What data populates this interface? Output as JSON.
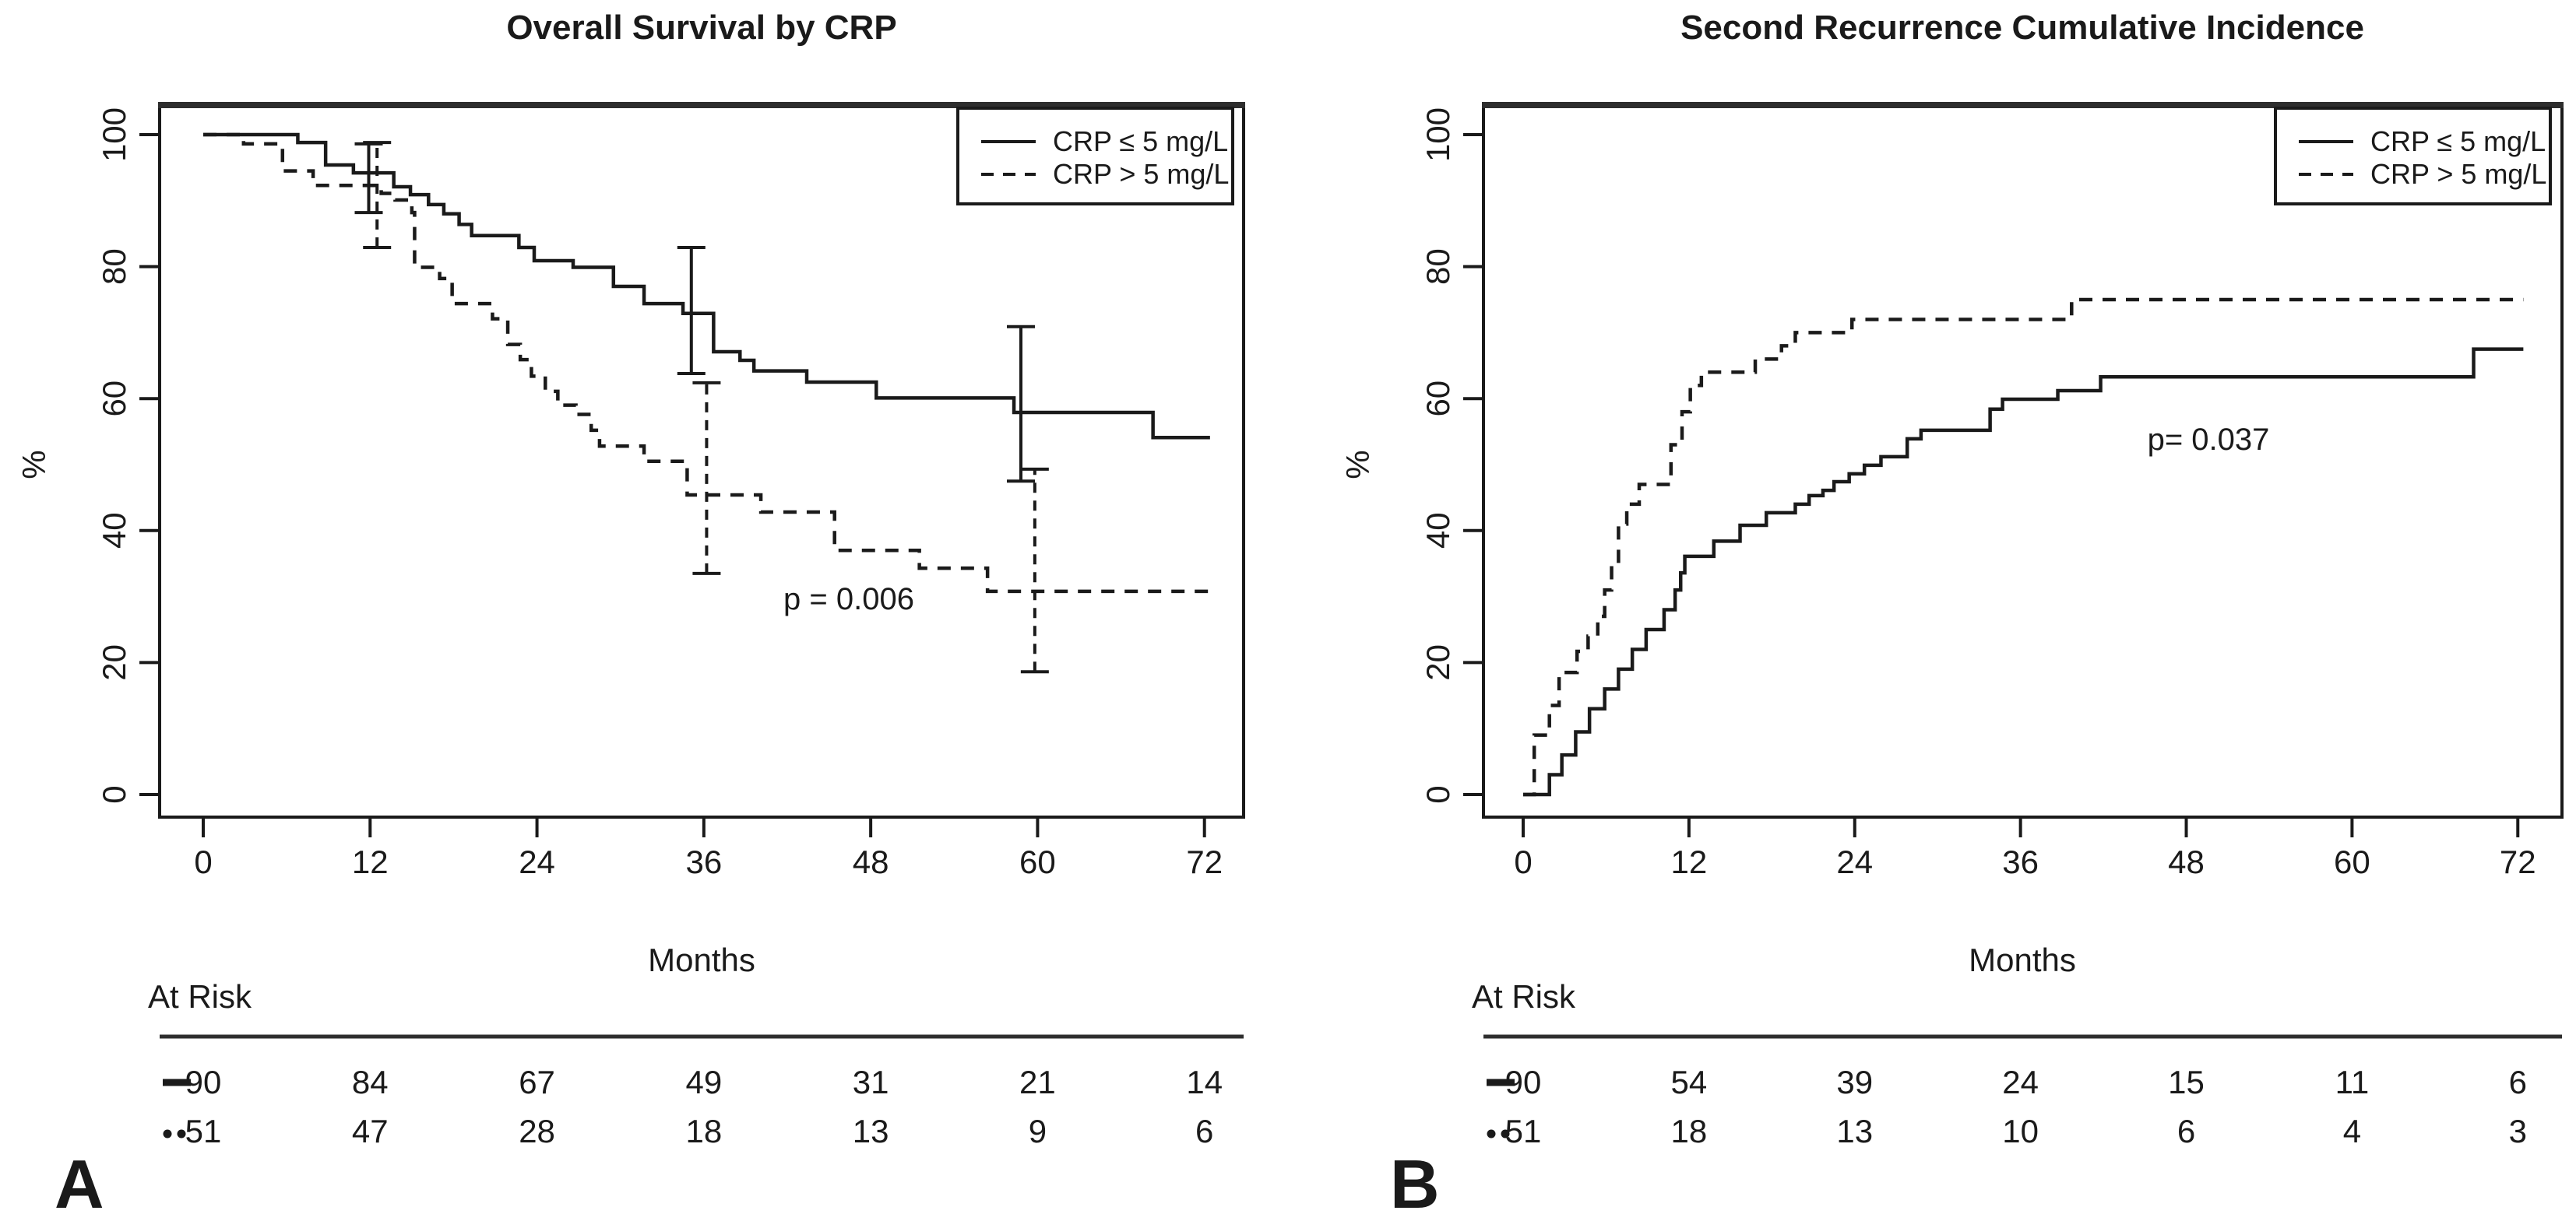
{
  "page": {
    "background": "#ffffff",
    "ink_color": "#1a1a1a"
  },
  "chart_data": [
    {
      "panel_label": "A",
      "type": "line",
      "subtype": "kaplan-meier-step",
      "title": "Overall Survival by CRP",
      "xlabel": "Months",
      "ylabel": "%",
      "xlim": [
        -3,
        75
      ],
      "ylim": [
        -3.5,
        104.5
      ],
      "xticks": [
        0,
        12,
        24,
        36,
        48,
        60,
        72
      ],
      "yticks": [
        0,
        20,
        40,
        60,
        80,
        100
      ],
      "grid": false,
      "legend": {
        "position": "top-right",
        "entries": [
          {
            "label": "CRP ≤ 5 mg/L",
            "style": "solid"
          },
          {
            "label": "CRP > 5 mg/L",
            "style": "dashed"
          }
        ]
      },
      "p_label": {
        "text": "p = 0.006",
        "x": 46.4,
        "y": 29.5
      },
      "series": [
        {
          "name": "CRP ≤ 5 mg/L",
          "style": "solid",
          "start": [
            0,
            100
          ],
          "end_x": 72.4,
          "steps": [
            [
              6.8,
              98.8
            ],
            [
              8.8,
              95.4
            ],
            [
              10.8,
              94.2
            ],
            [
              13.7,
              92.1
            ],
            [
              14.9,
              90.9
            ],
            [
              16.2,
              89.4
            ],
            [
              17.3,
              88.0
            ],
            [
              18.4,
              86.4
            ],
            [
              19.3,
              84.7
            ],
            [
              22.7,
              82.9
            ],
            [
              23.8,
              80.9
            ],
            [
              26.6,
              79.9
            ],
            [
              29.5,
              77.0
            ],
            [
              31.7,
              74.4
            ],
            [
              34.5,
              72.9
            ],
            [
              36.7,
              67.1
            ],
            [
              38.6,
              65.8
            ],
            [
              39.6,
              64.2
            ],
            [
              43.4,
              62.5
            ],
            [
              48.4,
              60.1
            ],
            [
              58.3,
              57.9
            ],
            [
              68.3,
              54.1
            ]
          ]
        },
        {
          "name": "CRP > 5 mg/L",
          "style": "dashed",
          "start": [
            0,
            100
          ],
          "end_x": 72.4,
          "steps": [
            [
              2.9,
              98.6
            ],
            [
              5.7,
              94.5
            ],
            [
              7.9,
              92.3
            ],
            [
              12.8,
              91.1
            ],
            [
              13.8,
              90.1
            ],
            [
              15.0,
              88.2
            ],
            [
              15.2,
              79.9
            ],
            [
              17.0,
              78.2
            ],
            [
              17.9,
              74.4
            ],
            [
              20.8,
              72.1
            ],
            [
              21.9,
              68.2
            ],
            [
              22.8,
              65.9
            ],
            [
              23.6,
              63.4
            ],
            [
              24.6,
              61.1
            ],
            [
              25.5,
              59.0
            ],
            [
              26.8,
              57.6
            ],
            [
              27.9,
              55.2
            ],
            [
              28.5,
              52.8
            ],
            [
              31.7,
              50.5
            ],
            [
              34.8,
              45.4
            ],
            [
              40.1,
              42.8
            ],
            [
              45.4,
              37.0
            ],
            [
              51.5,
              34.3
            ],
            [
              56.4,
              30.8
            ]
          ]
        }
      ],
      "error_bars": [
        {
          "series_style": "solid",
          "x": 11.9,
          "low": 88.2,
          "high": 98.6
        },
        {
          "series_style": "dashed",
          "x": 12.5,
          "low": 82.9,
          "high": 98.8
        },
        {
          "series_style": "solid",
          "x": 35.1,
          "low": 63.8,
          "high": 82.9
        },
        {
          "series_style": "dashed",
          "x": 36.2,
          "low": 33.5,
          "high": 62.4
        },
        {
          "series_style": "solid",
          "x": 58.8,
          "low": 47.5,
          "high": 70.9
        },
        {
          "series_style": "dashed",
          "x": 59.8,
          "low": 18.6,
          "high": 49.3
        }
      ],
      "at_risk": {
        "label": "At Risk",
        "time_points": [
          0,
          12,
          24,
          36,
          48,
          60,
          72
        ],
        "rows": [
          {
            "marker": "solid",
            "values": [
              "90",
              "84",
              "67",
              "49",
              "31",
              "21",
              "14"
            ]
          },
          {
            "marker": "dashed",
            "values": [
              "51",
              "47",
              "28",
              "18",
              "13",
              "9",
              "6"
            ]
          }
        ]
      }
    },
    {
      "panel_label": "B",
      "type": "line",
      "subtype": "cumulative-incidence-step",
      "title": "Second Recurrence Cumulative Incidence",
      "xlabel": "Months",
      "ylabel": "%",
      "xlim": [
        -3,
        75
      ],
      "ylim": [
        -3.5,
        104.5
      ],
      "xticks": [
        0,
        12,
        24,
        36,
        48,
        60,
        72
      ],
      "yticks": [
        0,
        20,
        40,
        60,
        80,
        100
      ],
      "grid": false,
      "legend": {
        "position": "top-right",
        "entries": [
          {
            "label": "CRP ≤ 5 mg/L",
            "style": "solid"
          },
          {
            "label": "CRP > 5 mg/L",
            "style": "dashed"
          }
        ]
      },
      "p_label": {
        "text": "p= 0.037",
        "x": 49.6,
        "y": 53.8
      },
      "series": [
        {
          "name": "CRP ≤ 5 mg/L",
          "style": "solid",
          "start": [
            0,
            0
          ],
          "end_x": 72.4,
          "steps": [
            [
              1.9,
              3.0
            ],
            [
              2.8,
              6.0
            ],
            [
              3.8,
              9.5
            ],
            [
              4.8,
              13.0
            ],
            [
              5.9,
              16.0
            ],
            [
              6.9,
              19.0
            ],
            [
              7.9,
              22.0
            ],
            [
              8.9,
              25.0
            ],
            [
              10.2,
              28.0
            ],
            [
              11.0,
              31.0
            ],
            [
              11.4,
              33.6
            ],
            [
              11.7,
              36.1
            ],
            [
              13.8,
              38.4
            ],
            [
              15.7,
              40.8
            ],
            [
              17.6,
              42.7
            ],
            [
              19.7,
              44.0
            ],
            [
              20.7,
              45.3
            ],
            [
              21.7,
              46.1
            ],
            [
              22.5,
              47.4
            ],
            [
              23.6,
              48.6
            ],
            [
              24.7,
              49.9
            ],
            [
              25.9,
              51.2
            ],
            [
              27.8,
              53.9
            ],
            [
              28.8,
              55.2
            ],
            [
              33.8,
              58.4
            ],
            [
              34.7,
              59.9
            ],
            [
              38.7,
              61.2
            ],
            [
              41.8,
              63.3
            ],
            [
              68.8,
              67.5
            ]
          ]
        },
        {
          "name": "CRP > 5 mg/L",
          "style": "dashed",
          "start": [
            0,
            0
          ],
          "end_x": 72.4,
          "steps": [
            [
              0.8,
              9.0
            ],
            [
              1.9,
              13.5
            ],
            [
              2.6,
              18.5
            ],
            [
              3.9,
              21.7
            ],
            [
              4.7,
              24.0
            ],
            [
              5.4,
              27.0
            ],
            [
              5.9,
              31.0
            ],
            [
              6.4,
              35.0
            ],
            [
              6.9,
              41.0
            ],
            [
              7.5,
              44.0
            ],
            [
              8.4,
              47.0
            ],
            [
              10.7,
              53.0
            ],
            [
              11.5,
              58.0
            ],
            [
              12.1,
              62.0
            ],
            [
              12.9,
              64.0
            ],
            [
              16.8,
              66.0
            ],
            [
              18.7,
              68.0
            ],
            [
              19.7,
              70.0
            ],
            [
              23.8,
              72.0
            ],
            [
              39.7,
              75.0
            ]
          ]
        }
      ],
      "error_bars": [],
      "at_risk": {
        "label": "At Risk",
        "time_points": [
          0,
          12,
          24,
          36,
          48,
          60,
          72
        ],
        "rows": [
          {
            "marker": "solid",
            "values": [
              "90",
              "54",
              "39",
              "24",
              "15",
              "11",
              "6"
            ]
          },
          {
            "marker": "dashed",
            "values": [
              "51",
              "18",
              "13",
              "10",
              "6",
              "4",
              "3"
            ]
          }
        ]
      }
    }
  ]
}
